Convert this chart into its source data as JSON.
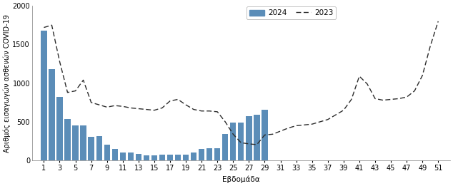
{
  "bar_weeks": [
    1,
    2,
    3,
    4,
    5,
    6,
    7,
    8,
    9,
    10,
    11,
    12,
    13,
    14,
    15,
    16,
    17,
    18,
    19,
    20,
    21,
    22,
    23,
    24,
    25,
    26,
    27,
    28,
    29
  ],
  "bar_values": [
    1680,
    1180,
    820,
    540,
    450,
    450,
    310,
    315,
    205,
    145,
    105,
    105,
    85,
    65,
    65,
    80,
    80,
    80,
    80,
    105,
    150,
    160,
    155,
    340,
    490,
    490,
    575,
    590,
    660
  ],
  "line2023_weeks": [
    1,
    2,
    3,
    4,
    5,
    6,
    7,
    8,
    9,
    10,
    11,
    12,
    13,
    14,
    15,
    16,
    17,
    18,
    19,
    20,
    21,
    22,
    23,
    24,
    25,
    26,
    27,
    28,
    29,
    30,
    31,
    32,
    33,
    34,
    35,
    36,
    37,
    38,
    39,
    40,
    41,
    42,
    43,
    44,
    45,
    46,
    47,
    48,
    49,
    50,
    51
  ],
  "line2023_values": [
    1720,
    1750,
    1280,
    880,
    900,
    1040,
    750,
    720,
    690,
    710,
    700,
    680,
    670,
    660,
    650,
    680,
    770,
    790,
    720,
    660,
    640,
    640,
    630,
    500,
    340,
    230,
    215,
    205,
    330,
    340,
    380,
    420,
    450,
    460,
    470,
    500,
    530,
    590,
    650,
    790,
    1090,
    990,
    800,
    780,
    790,
    800,
    820,
    900,
    1100,
    1480,
    1800
  ],
  "bar_color": "#5b8db8",
  "line_color": "#2c2c2c",
  "xlabel": "Εβδομάδα",
  "ylabel": "Αριθμός εισαγωγών ασθενών COVID-19",
  "legend_2024": "2024",
  "legend_2023": "2023",
  "ylim": [
    0,
    2000
  ],
  "yticks": [
    0,
    500,
    1000,
    1500,
    2000
  ],
  "xticks": [
    1,
    3,
    5,
    7,
    9,
    11,
    13,
    15,
    17,
    19,
    21,
    23,
    25,
    27,
    29,
    31,
    33,
    35,
    37,
    39,
    41,
    43,
    45,
    47,
    49,
    51
  ],
  "background_color": "#ffffff",
  "label_fontsize": 7.5,
  "tick_fontsize": 7.0
}
